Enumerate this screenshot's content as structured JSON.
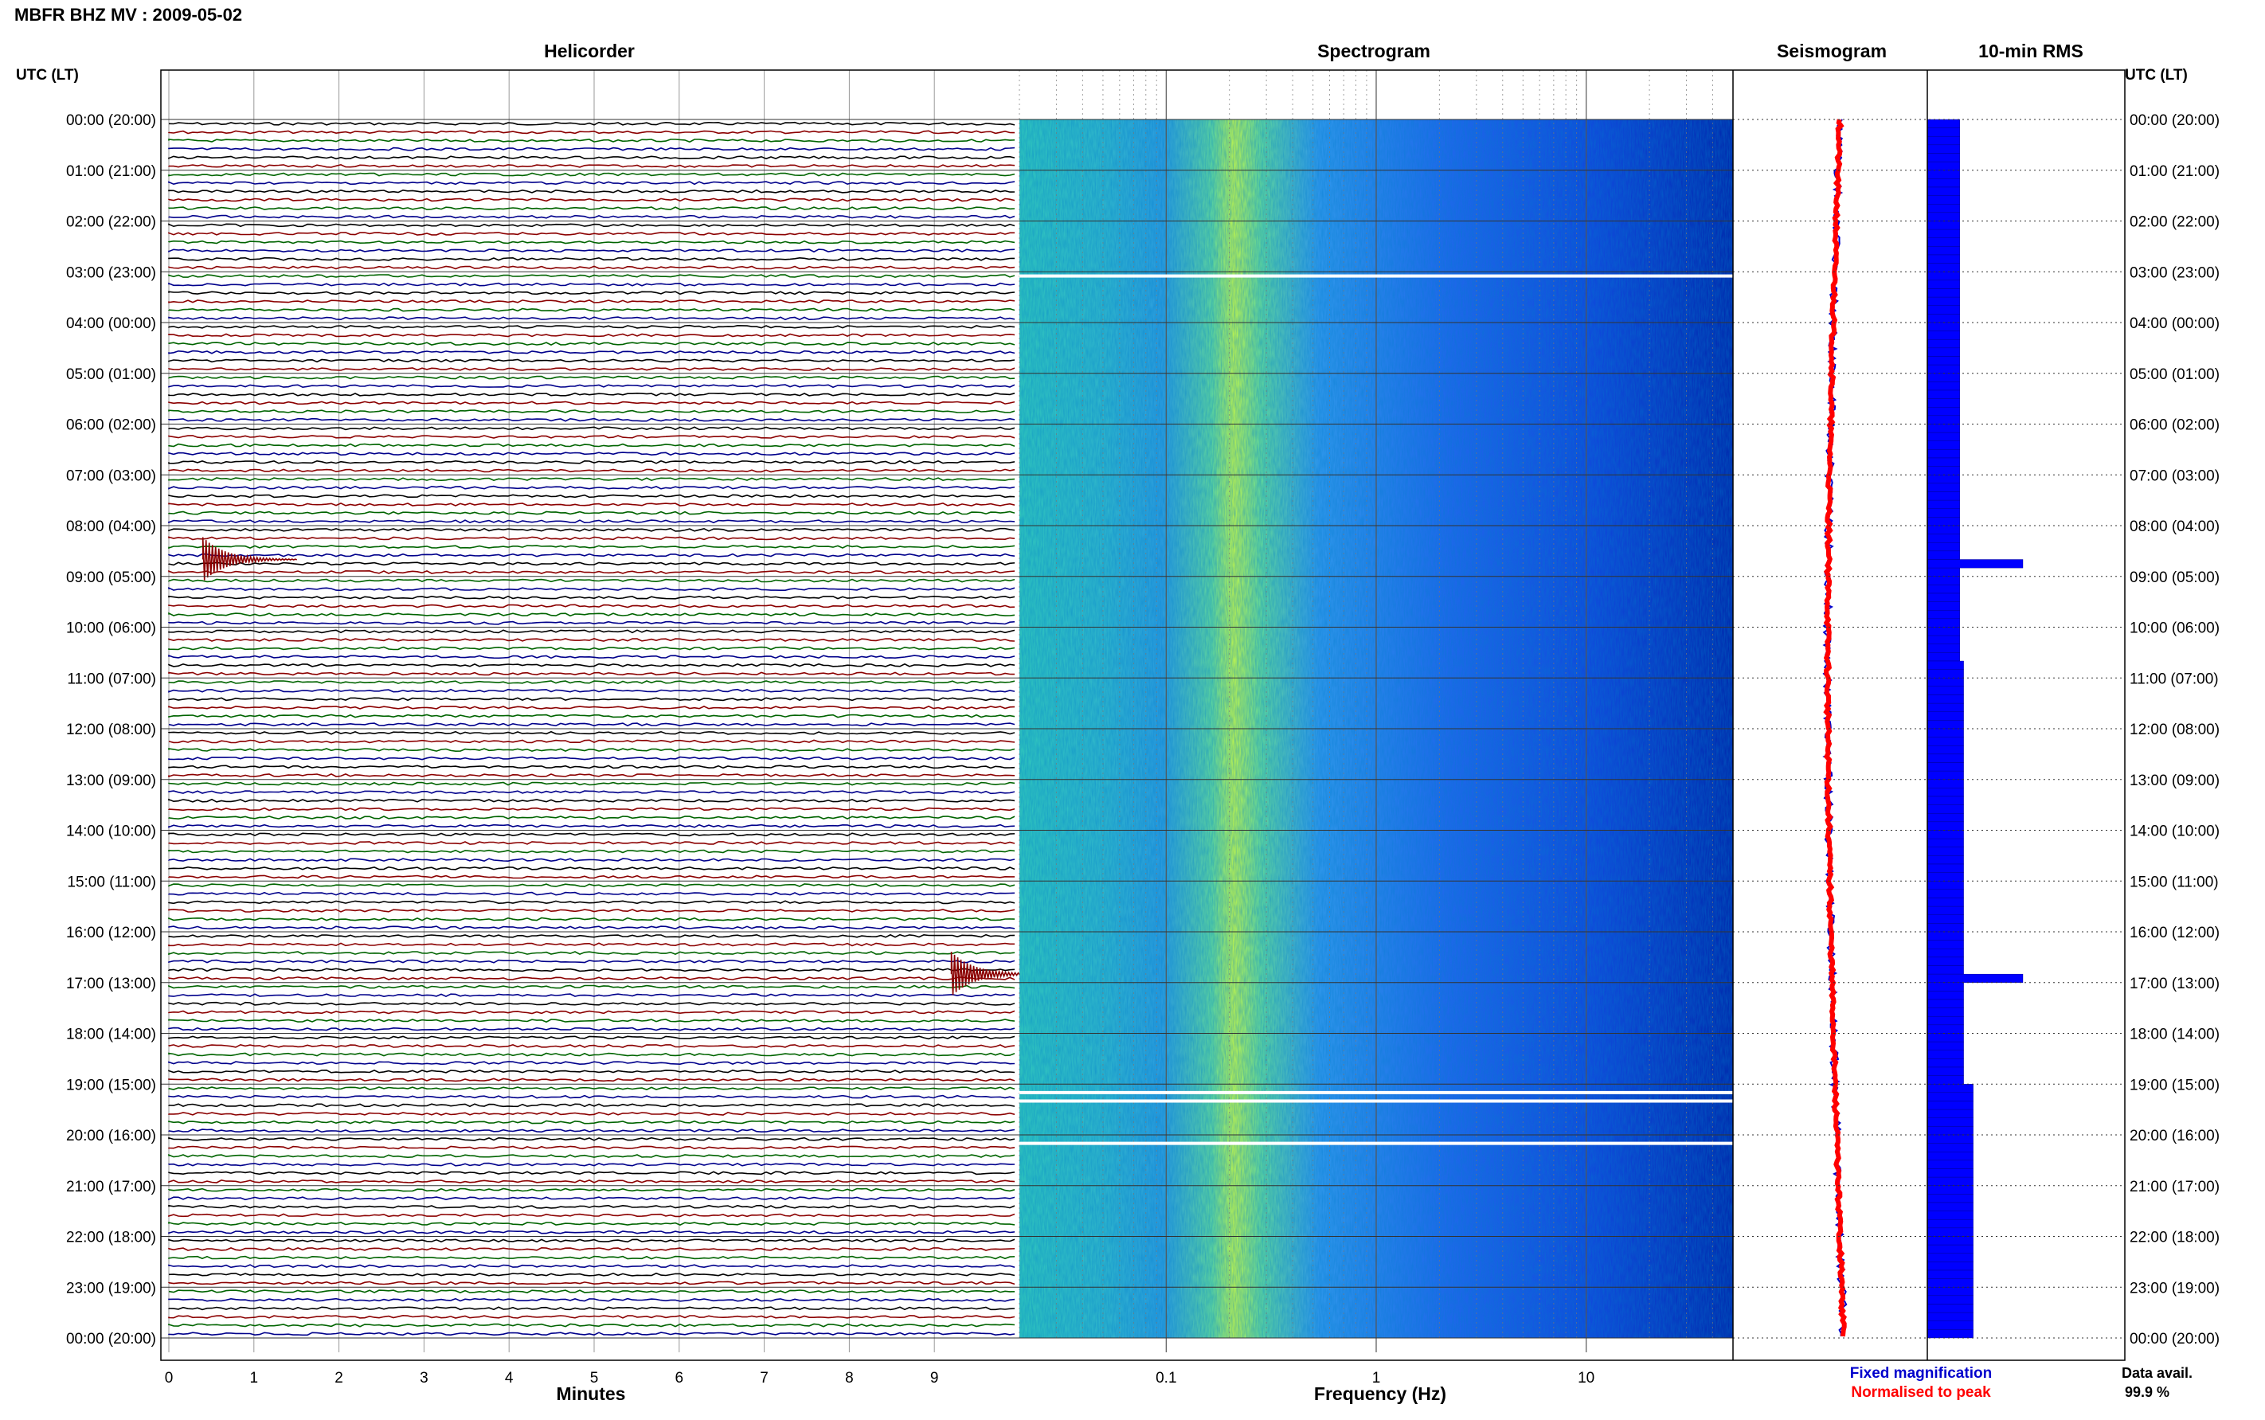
{
  "title": "MBFR BHZ MV : 2009-05-02",
  "panels": {
    "helicorder": "Helicorder",
    "spectrogram": "Spectrogram",
    "seismogram": "Seismogram",
    "rms": "10-min RMS"
  },
  "time_axis_label": "UTC (LT)",
  "time_labels": [
    "00:00 (20:00)",
    "01:00 (21:00)",
    "02:00 (22:00)",
    "03:00 (23:00)",
    "04:00 (00:00)",
    "05:00 (01:00)",
    "06:00 (02:00)",
    "07:00 (03:00)",
    "08:00 (04:00)",
    "09:00 (05:00)",
    "10:00 (06:00)",
    "11:00 (07:00)",
    "12:00 (08:00)",
    "13:00 (09:00)",
    "14:00 (10:00)",
    "15:00 (11:00)",
    "16:00 (12:00)",
    "17:00 (13:00)",
    "18:00 (14:00)",
    "19:00 (15:00)",
    "20:00 (16:00)",
    "21:00 (17:00)",
    "22:00 (18:00)",
    "23:00 (19:00)",
    "00:00 (20:00)"
  ],
  "helicorder_xlabel": "Minutes",
  "helicorder_ticks": [
    "0",
    "1",
    "2",
    "3",
    "4",
    "5",
    "6",
    "7",
    "8",
    "9"
  ],
  "spectrogram_xlabel": "Frequency (Hz)",
  "spectrogram_ticks": [
    {
      "value": 0.1,
      "label": "0.1"
    },
    {
      "value": 1,
      "label": "1"
    },
    {
      "value": 10,
      "label": "10"
    }
  ],
  "legend": [
    {
      "label": "Fixed magnification",
      "color": "#0000cc"
    },
    {
      "label": "Normalised to peak",
      "color": "#ff0000"
    }
  ],
  "availability": {
    "label": "Data avail.",
    "value": "99.9 %"
  },
  "colors": {
    "helicorder_traces": [
      "#000000",
      "#8b0000",
      "#006400",
      "#00008b"
    ],
    "rms_bar": "#0000ff",
    "spectrogram_low": "#0033cc",
    "spectrogram_high": "#ccff33"
  },
  "chart_data": [
    {
      "type": "line",
      "panel": "helicorder",
      "xlabel": "Minutes",
      "x_range": [
        0,
        10
      ],
      "ylabel": "UTC (LT)",
      "lines_per_hour": 6,
      "line_count": 144,
      "trace_colors_cycle": [
        "black",
        "darkred",
        "green",
        "darkblue"
      ],
      "events": [
        {
          "utc": "08:40",
          "minute": 0.4,
          "note": "large event"
        },
        {
          "utc": "16:50",
          "minute": 9.2,
          "note": "large event"
        }
      ]
    },
    {
      "type": "heatmap",
      "panel": "spectrogram",
      "xlabel": "Frequency (Hz)",
      "x_scale": "log",
      "x_range": [
        0.02,
        50
      ],
      "y_range_utc": [
        "00:00",
        "24:00"
      ],
      "peak_band_hz": [
        0.2,
        0.3
      ],
      "gaps_utc": [
        "03:05",
        "19:10",
        "19:20",
        "20:10"
      ]
    },
    {
      "type": "bar",
      "panel": "10-min RMS",
      "orientation": "horizontal",
      "bin_minutes": 10,
      "bins": 144,
      "relative_values": [
        0.34,
        0.34,
        0.34,
        0.34,
        0.34,
        0.34,
        0.34,
        0.34,
        0.34,
        0.34,
        0.34,
        0.34,
        0.34,
        0.34,
        0.34,
        0.34,
        0.34,
        0.34,
        0.34,
        0.34,
        0.34,
        0.34,
        0.34,
        0.34,
        0.34,
        0.34,
        0.34,
        0.34,
        0.34,
        0.34,
        0.34,
        0.34,
        0.34,
        0.34,
        0.34,
        0.34,
        0.34,
        0.34,
        0.34,
        0.34,
        0.34,
        0.34,
        0.34,
        0.34,
        0.34,
        0.34,
        0.34,
        0.34,
        0.34,
        0.34,
        0.34,
        0.34,
        1.0,
        0.34,
        0.34,
        0.34,
        0.34,
        0.34,
        0.34,
        0.34,
        0.34,
        0.34,
        0.34,
        0.34,
        0.38,
        0.38,
        0.38,
        0.38,
        0.38,
        0.38,
        0.38,
        0.38,
        0.38,
        0.38,
        0.38,
        0.38,
        0.38,
        0.38,
        0.38,
        0.38,
        0.38,
        0.38,
        0.38,
        0.38,
        0.38,
        0.38,
        0.38,
        0.38,
        0.38,
        0.38,
        0.38,
        0.38,
        0.38,
        0.38,
        0.38,
        0.38,
        0.38,
        0.38,
        0.38,
        0.38,
        0.38,
        1.0,
        0.38,
        0.38,
        0.38,
        0.38,
        0.38,
        0.38,
        0.38,
        0.38,
        0.38,
        0.38,
        0.38,
        0.38,
        0.48,
        0.48,
        0.48,
        0.48,
        0.48,
        0.48,
        0.48,
        0.48,
        0.48,
        0.48,
        0.48,
        0.48,
        0.48,
        0.48,
        0.48,
        0.48,
        0.48,
        0.48,
        0.48,
        0.48,
        0.48,
        0.48,
        0.48,
        0.48,
        0.48,
        0.48,
        0.48,
        0.48,
        0.48,
        0.48
      ]
    }
  ]
}
